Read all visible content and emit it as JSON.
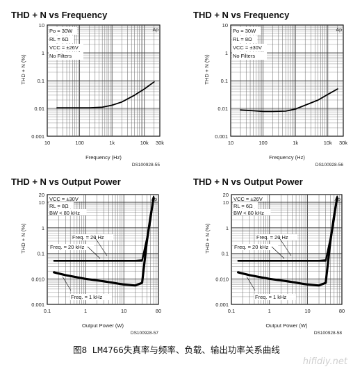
{
  "caption": "图8 LM4766失真率与频率、负载、输出功率关系曲线",
  "watermark": "hifidiy.net",
  "chart_data": [
    {
      "type": "line",
      "title": "THD + N vs Frequency",
      "xlabel": "Frequency (Hz)",
      "ylabel": "THD + N (%)",
      "xscale": "log",
      "yscale": "log",
      "xlim": [
        10,
        30000
      ],
      "ylim": [
        0.001,
        10
      ],
      "xticks": [
        {
          "v": 10,
          "l": "10"
        },
        {
          "v": 100,
          "l": "100"
        },
        {
          "v": 1000,
          "l": "1k"
        },
        {
          "v": 10000,
          "l": "10k"
        },
        {
          "v": 30000,
          "l": "30k"
        }
      ],
      "yticks": [
        {
          "v": 0.001,
          "l": "0.001"
        },
        {
          "v": 0.01,
          "l": "0.01"
        },
        {
          "v": 0.1,
          "l": "0.1"
        },
        {
          "v": 1,
          "l": "1"
        },
        {
          "v": 10,
          "l": "10"
        }
      ],
      "annotations": [
        "Po = 30W",
        "RL = 6Ω",
        "VCC = ±26V",
        "No Filters"
      ],
      "ap_label": "Ap",
      "code": "DS100928-55",
      "series": [
        {
          "x": [
            20,
            50,
            100,
            200,
            500,
            1000,
            2000,
            5000,
            10000,
            20000
          ],
          "y": [
            0.0105,
            0.0105,
            0.0105,
            0.0105,
            0.011,
            0.013,
            0.017,
            0.03,
            0.05,
            0.09
          ]
        }
      ]
    },
    {
      "type": "line",
      "title": "THD + N vs Frequency",
      "xlabel": "Frequency (Hz)",
      "ylabel": "THD + N (%)",
      "xscale": "log",
      "yscale": "log",
      "xlim": [
        10,
        30000
      ],
      "ylim": [
        0.001,
        10
      ],
      "xticks": [
        {
          "v": 10,
          "l": "10"
        },
        {
          "v": 100,
          "l": "100"
        },
        {
          "v": 1000,
          "l": "1k"
        },
        {
          "v": 10000,
          "l": "10k"
        },
        {
          "v": 30000,
          "l": "30k"
        }
      ],
      "yticks": [
        {
          "v": 0.001,
          "l": "0.001"
        },
        {
          "v": 0.01,
          "l": "0.01"
        },
        {
          "v": 0.1,
          "l": "0.1"
        },
        {
          "v": 1,
          "l": "1"
        },
        {
          "v": 10,
          "l": "10"
        }
      ],
      "annotations": [
        "Po = 30W",
        "RL = 8Ω",
        "VCC = ±30V",
        "No Filters"
      ],
      "ap_label": "Ap",
      "code": "DS100928-56",
      "series": [
        {
          "x": [
            20,
            50,
            100,
            200,
            500,
            1000,
            2000,
            5000,
            10000,
            20000
          ],
          "y": [
            0.0088,
            0.0082,
            0.0078,
            0.0078,
            0.008,
            0.0095,
            0.013,
            0.02,
            0.032,
            0.05
          ]
        }
      ]
    },
    {
      "type": "line",
      "title": "THD + N vs Output Power",
      "xlabel": "Output Power (W)",
      "ylabel": "THD + N (%)",
      "xscale": "log",
      "yscale": "log",
      "xlim": [
        0.1,
        80
      ],
      "ylim": [
        0.001,
        20
      ],
      "xticks": [
        {
          "v": 0.1,
          "l": "0.1"
        },
        {
          "v": 1,
          "l": "1"
        },
        {
          "v": 10,
          "l": "10"
        },
        {
          "v": 80,
          "l": "80"
        }
      ],
      "yticks": [
        {
          "v": 0.001,
          "l": "0.001"
        },
        {
          "v": 0.01,
          "l": "0.010"
        },
        {
          "v": 0.1,
          "l": "0.1"
        },
        {
          "v": 1,
          "l": "1"
        },
        {
          "v": 10,
          "l": "10"
        },
        {
          "v": 20,
          "l": "20"
        }
      ],
      "annotations": [
        "VCC = ±30V",
        "RL = 8Ω",
        "BW < 80 kHz"
      ],
      "ap_label": "Ap",
      "code": "DS100928-57",
      "series": [
        {
          "name": "Freq. = 20 Hz",
          "x": [
            0.15,
            0.5,
            1,
            3,
            10,
            20,
            30,
            40,
            50,
            60
          ],
          "y": [
            0.05,
            0.05,
            0.05,
            0.05,
            0.05,
            0.05,
            0.05,
            0.3,
            2,
            15
          ]
        },
        {
          "name": "Freq. = 20 kHz",
          "x": [
            0.15,
            0.5,
            1,
            3,
            10,
            20,
            30,
            40,
            50,
            60
          ],
          "y": [
            0.052,
            0.052,
            0.052,
            0.052,
            0.052,
            0.052,
            0.055,
            0.4,
            3,
            17
          ]
        },
        {
          "name": "Freq. = 1 kHz",
          "x": [
            0.15,
            0.3,
            1,
            3,
            10,
            20,
            30,
            40,
            50,
            60
          ],
          "y": [
            0.018,
            0.014,
            0.01,
            0.008,
            0.006,
            0.0055,
            0.007,
            0.3,
            3,
            15
          ]
        }
      ]
    },
    {
      "type": "line",
      "title": "THD + N vs Output Power",
      "xlabel": "Output Power (W)",
      "ylabel": "THD + N (%)",
      "xscale": "log",
      "yscale": "log",
      "xlim": [
        0.1,
        80
      ],
      "ylim": [
        0.001,
        20
      ],
      "xticks": [
        {
          "v": 0.1,
          "l": "0.1"
        },
        {
          "v": 1,
          "l": "1"
        },
        {
          "v": 10,
          "l": "10"
        },
        {
          "v": 80,
          "l": "80"
        }
      ],
      "yticks": [
        {
          "v": 0.001,
          "l": "0.001"
        },
        {
          "v": 0.01,
          "l": "0.010"
        },
        {
          "v": 0.1,
          "l": "0.1"
        },
        {
          "v": 1,
          "l": "1"
        },
        {
          "v": 10,
          "l": "10"
        },
        {
          "v": 20,
          "l": "20"
        }
      ],
      "annotations": [
        "VCC = ±26V",
        "RL = 6Ω",
        "BW < 80 kHz"
      ],
      "ap_label": "Ap",
      "code": "DS100928-58",
      "series": [
        {
          "name": "Freq. = 20 Hz",
          "x": [
            0.15,
            0.5,
            1,
            3,
            10,
            20,
            30,
            40,
            50,
            60
          ],
          "y": [
            0.05,
            0.05,
            0.05,
            0.05,
            0.05,
            0.05,
            0.05,
            0.3,
            2,
            15
          ]
        },
        {
          "name": "Freq. = 20 kHz",
          "x": [
            0.15,
            0.5,
            1,
            3,
            10,
            20,
            30,
            40,
            50,
            60
          ],
          "y": [
            0.052,
            0.052,
            0.052,
            0.052,
            0.052,
            0.052,
            0.055,
            0.4,
            3,
            17
          ]
        },
        {
          "name": "Freq. = 1 kHz",
          "x": [
            0.15,
            0.3,
            1,
            3,
            10,
            20,
            30,
            40,
            50,
            60
          ],
          "y": [
            0.018,
            0.014,
            0.01,
            0.008,
            0.006,
            0.0055,
            0.007,
            0.3,
            3,
            15
          ]
        }
      ]
    }
  ]
}
